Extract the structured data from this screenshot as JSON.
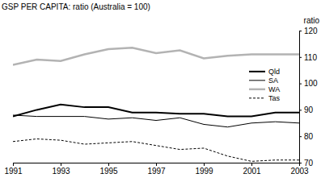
{
  "chart_data": {
    "type": "line",
    "title": "GSP PER CAPITA: ratio (Australia = 100)",
    "ylabel": "ratio",
    "x": [
      1991,
      1992,
      1993,
      1994,
      1995,
      1996,
      1997,
      1998,
      1999,
      2000,
      2001,
      2002,
      2003
    ],
    "xlim": [
      1991,
      2003
    ],
    "xticks": [
      1991,
      1993,
      1995,
      1997,
      1999,
      2001,
      2003
    ],
    "ylim": [
      70,
      120
    ],
    "yticks": [
      70,
      80,
      90,
      100,
      110,
      120
    ],
    "grid": false,
    "legend": "right",
    "series": [
      {
        "name": "Qld",
        "color": "#000000",
        "line_style": "solid",
        "values": [
          87.5,
          90,
          92,
          91,
          91,
          89,
          89,
          88.5,
          88.5,
          87.5,
          87.5,
          89,
          89
        ]
      },
      {
        "name": "SA",
        "color": "#000000",
        "line_style": "solid",
        "values": [
          88,
          87.5,
          87.5,
          87.5,
          86.5,
          87,
          86,
          87,
          84.5,
          83.5,
          85,
          85.5,
          85
        ]
      },
      {
        "name": "WA",
        "color": "#b3b3b3",
        "line_style": "solid",
        "values": [
          107,
          109,
          108.5,
          111,
          113,
          113.5,
          111.5,
          112.5,
          109.5,
          110.5,
          111,
          111,
          111
        ]
      },
      {
        "name": "Tas",
        "color": "#000000",
        "line_style": "dashed",
        "values": [
          78,
          79,
          78.5,
          77,
          77.5,
          78,
          76.5,
          75,
          75.5,
          72.5,
          70.5,
          71,
          71
        ]
      }
    ]
  }
}
